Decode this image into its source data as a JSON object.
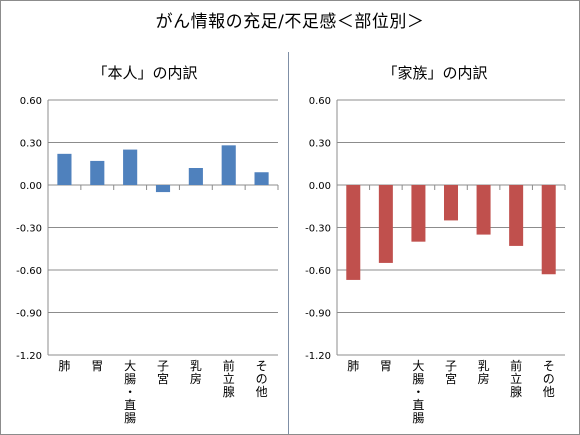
{
  "page_title": "がん情報の充足/不足感＜部位別＞",
  "chart_data": [
    {
      "type": "bar",
      "title": "「本人」の内訳",
      "categories": [
        "肺",
        "胃",
        "大腸・直腸",
        "子宮",
        "乳房",
        "前立腺",
        "その他"
      ],
      "values": [
        0.22,
        0.17,
        0.25,
        -0.05,
        0.12,
        0.28,
        0.09
      ],
      "ylim": [
        -1.2,
        0.6
      ],
      "yticks": [
        "0.60",
        "0.30",
        "0.00",
        "-0.30",
        "-0.60",
        "-0.90",
        "-1.20"
      ],
      "grid": true,
      "color": "#4f81bd"
    },
    {
      "type": "bar",
      "title": "「家族」の内訳",
      "categories": [
        "肺",
        "胃",
        "大腸・直腸",
        "子宮",
        "乳房",
        "前立腺",
        "その他"
      ],
      "values": [
        -0.67,
        -0.55,
        -0.4,
        -0.25,
        -0.35,
        -0.43,
        -0.63
      ],
      "ylim": [
        -1.2,
        0.6
      ],
      "yticks": [
        "0.60",
        "0.30",
        "0.00",
        "-0.30",
        "-0.60",
        "-0.90",
        "-1.20"
      ],
      "grid": true,
      "color": "#c0504d"
    }
  ]
}
